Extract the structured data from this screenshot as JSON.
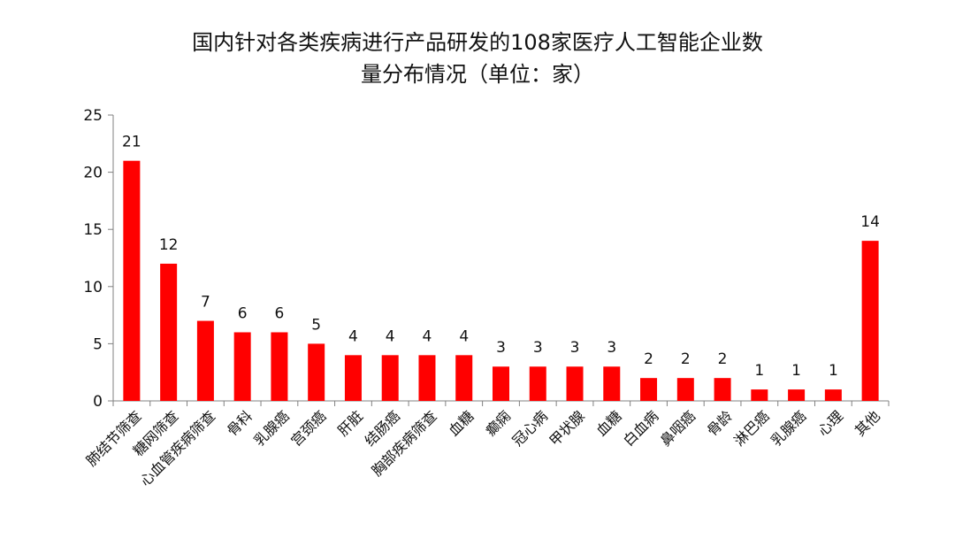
{
  "chart_data": {
    "type": "bar",
    "title_lines": [
      "国内针对各类疾病进行产品研发的108家医疗人工智能企业数",
      "量分布情况（单位：家）"
    ],
    "xlabel": "",
    "ylabel": "",
    "ylim": [
      0,
      25
    ],
    "yticks": [
      "0",
      "5",
      "10",
      "15",
      "20",
      "25"
    ],
    "grid": false,
    "bar_color": "#ff0000",
    "categories": [
      "肺结节筛查",
      "糖网筛查",
      "心血管疾病筛查",
      "骨科",
      "乳腺癌",
      "宫颈癌",
      "肝脏",
      "结肠癌",
      "胸部疾病筛查",
      "血糖",
      "癫痫",
      "冠心病",
      "甲状腺",
      "血糖",
      "白血病",
      "鼻咽癌",
      "骨龄",
      "淋巴癌",
      "乳腺癌",
      "心理",
      "其他"
    ],
    "values": [
      21,
      12,
      7,
      6,
      6,
      5,
      4,
      4,
      4,
      4,
      3,
      3,
      3,
      3,
      2,
      2,
      2,
      1,
      1,
      1,
      14
    ],
    "value_labels": [
      "21",
      "12",
      "7",
      "6",
      "6",
      "5",
      "4",
      "4",
      "4",
      "4",
      "3",
      "3",
      "3",
      "3",
      "2",
      "2",
      "2",
      "1",
      "1",
      "1",
      "14"
    ]
  }
}
